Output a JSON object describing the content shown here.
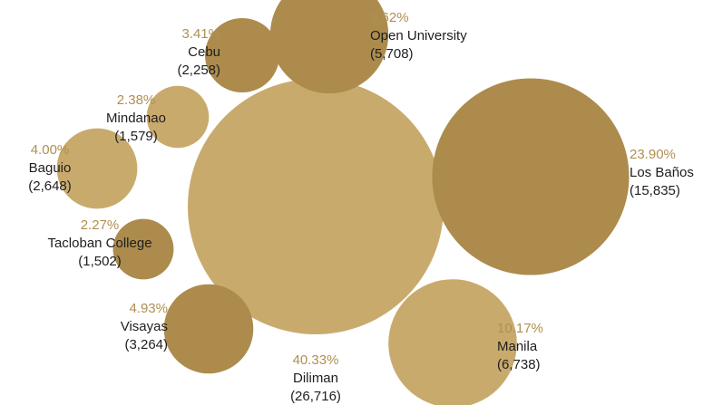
{
  "chart_data": {
    "type": "bubble",
    "title": "",
    "colors": {
      "light": "#c9aa6d",
      "dark": "#ac8b4d",
      "percent_text": "#b08f50"
    },
    "units": [
      {
        "name": "Diliman",
        "value": 26716,
        "value_label": "(26,716)",
        "percent": "40.33%",
        "shade": "light"
      },
      {
        "name": "Los Baños",
        "value": 15835,
        "value_label": "(15,835)",
        "percent": "23.90%",
        "shade": "dark"
      },
      {
        "name": "Manila",
        "value": 6738,
        "value_label": "(6,738)",
        "percent": "10.17%",
        "shade": "light"
      },
      {
        "name": "Open University",
        "value": 5708,
        "value_label": "(5,708)",
        "percent": "8.62%",
        "shade": "dark"
      },
      {
        "name": "Visayas",
        "value": 3264,
        "value_label": "(3,264)",
        "percent": "4.93%",
        "shade": "dark"
      },
      {
        "name": "Cebu",
        "value": 2258,
        "value_label": "(2,258)",
        "percent": "3.41%",
        "shade": "dark"
      },
      {
        "name": "Baguio",
        "value": 2648,
        "value_label": "(2,648)",
        "percent": "4.00%",
        "shade": "light"
      },
      {
        "name": "Mindanao",
        "value": 1579,
        "value_label": "(1,579)",
        "percent": "2.38%",
        "shade": "light"
      },
      {
        "name": "Tacloban College",
        "value": 1502,
        "value_label": "(1,502)",
        "percent": "2.27%",
        "shade": "dark"
      }
    ]
  }
}
